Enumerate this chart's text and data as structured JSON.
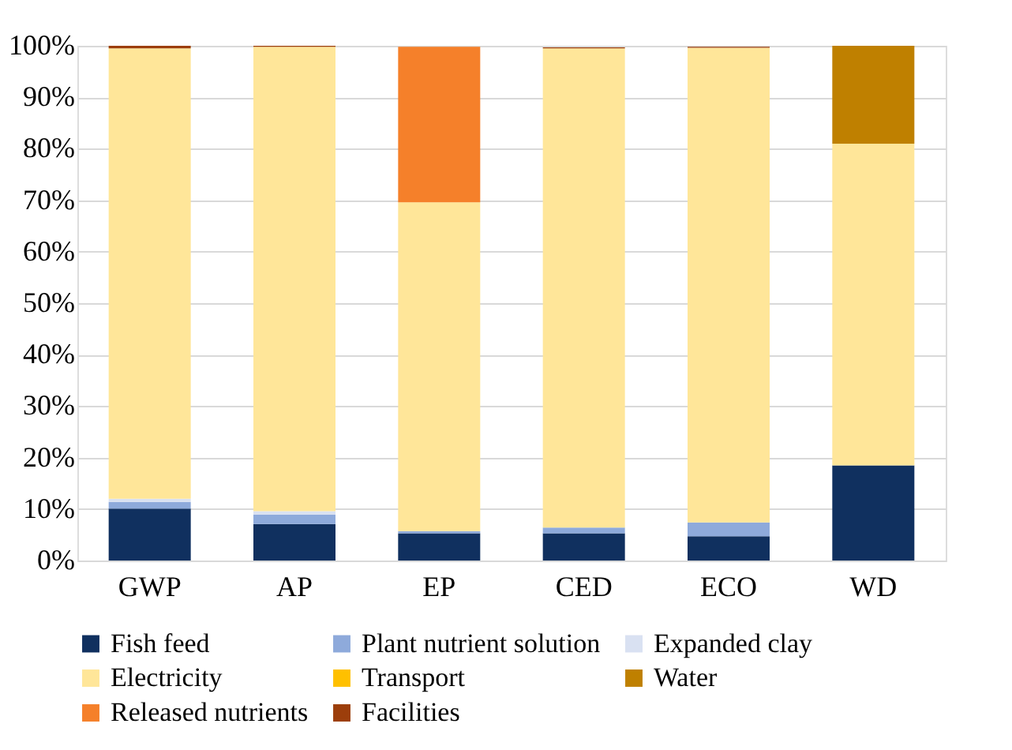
{
  "chart_data": {
    "type": "bar",
    "stacked": true,
    "categories": [
      "GWP",
      "AP",
      "EP",
      "CED",
      "ECO",
      "WD"
    ],
    "series": [
      {
        "name": "Fish feed",
        "color": "#10305f",
        "values": [
          10.1,
          7.1,
          5.3,
          5.3,
          4.7,
          18.5
        ]
      },
      {
        "name": "Plant nutrient solution",
        "color": "#8eaadb",
        "values": [
          1.3,
          1.8,
          0.4,
          1.1,
          2.7,
          0
        ]
      },
      {
        "name": "Expanded clay",
        "color": "#d9e1f2",
        "values": [
          0.6,
          0.7,
          null,
          null,
          null,
          0
        ]
      },
      {
        "name": "Electricity",
        "color": "#ffe699",
        "values": [
          87.5,
          90.2,
          63.9,
          93.1,
          92.2,
          62.5
        ]
      },
      {
        "name": "Transport",
        "color": "#ffc000",
        "values": [
          0,
          0,
          0,
          0,
          0,
          0
        ]
      },
      {
        "name": "Water",
        "color": "#bf8000",
        "values": [
          0,
          0,
          0,
          0,
          0,
          19
        ]
      },
      {
        "name": "Released nutrients",
        "color": "#f5802a",
        "values": [
          0,
          0,
          30.2,
          0,
          0,
          0
        ]
      },
      {
        "name": "Facilities",
        "color": "#9c3e0b",
        "values": [
          0.5,
          0.2,
          0,
          0.2,
          0.2,
          0
        ]
      }
    ],
    "ylim": [
      0,
      100
    ],
    "yticks": [
      {
        "value": 0,
        "label": "0%"
      },
      {
        "value": 10,
        "label": "10%"
      },
      {
        "value": 20,
        "label": "20%"
      },
      {
        "value": 30,
        "label": "30%"
      },
      {
        "value": 40,
        "label": "40%"
      },
      {
        "value": 50,
        "label": "50%"
      },
      {
        "value": 60,
        "label": "60%"
      },
      {
        "value": 70,
        "label": "70%"
      },
      {
        "value": 80,
        "label": "80%"
      },
      {
        "value": 90,
        "label": "90%"
      },
      {
        "value": 100,
        "label": "100%"
      }
    ],
    "grid": "y",
    "legend": "bottom"
  }
}
